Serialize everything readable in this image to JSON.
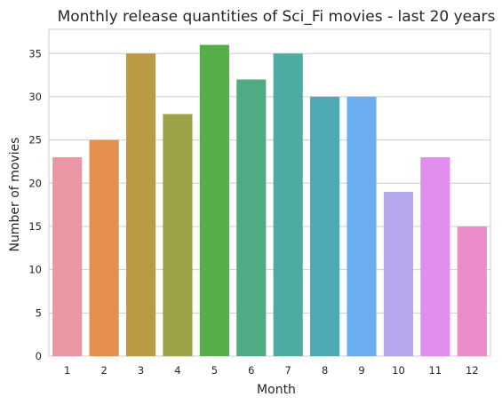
{
  "chart_data": {
    "type": "bar",
    "title": "Monthly release quantities of Sci_Fi movies - last 20 years",
    "xlabel": "Month",
    "ylabel": "Number of movies",
    "categories": [
      "1",
      "2",
      "3",
      "4",
      "5",
      "6",
      "7",
      "8",
      "9",
      "10",
      "11",
      "12"
    ],
    "values": [
      23,
      25,
      35,
      28,
      36,
      32,
      35,
      30,
      30,
      19,
      23,
      15
    ],
    "yticks": [
      "0",
      "5",
      "10",
      "15",
      "20",
      "25",
      "30",
      "35"
    ],
    "ylim": [
      0,
      37.8
    ],
    "grid": "horizontal",
    "colors": [
      "#ea96a3",
      "#e48f4e",
      "#bb9a45",
      "#9ca247",
      "#55ae47",
      "#4fac82",
      "#4daba2",
      "#4ea9b5",
      "#6aaef0",
      "#b7a8ee",
      "#e18eef",
      "#e98cc8"
    ]
  }
}
